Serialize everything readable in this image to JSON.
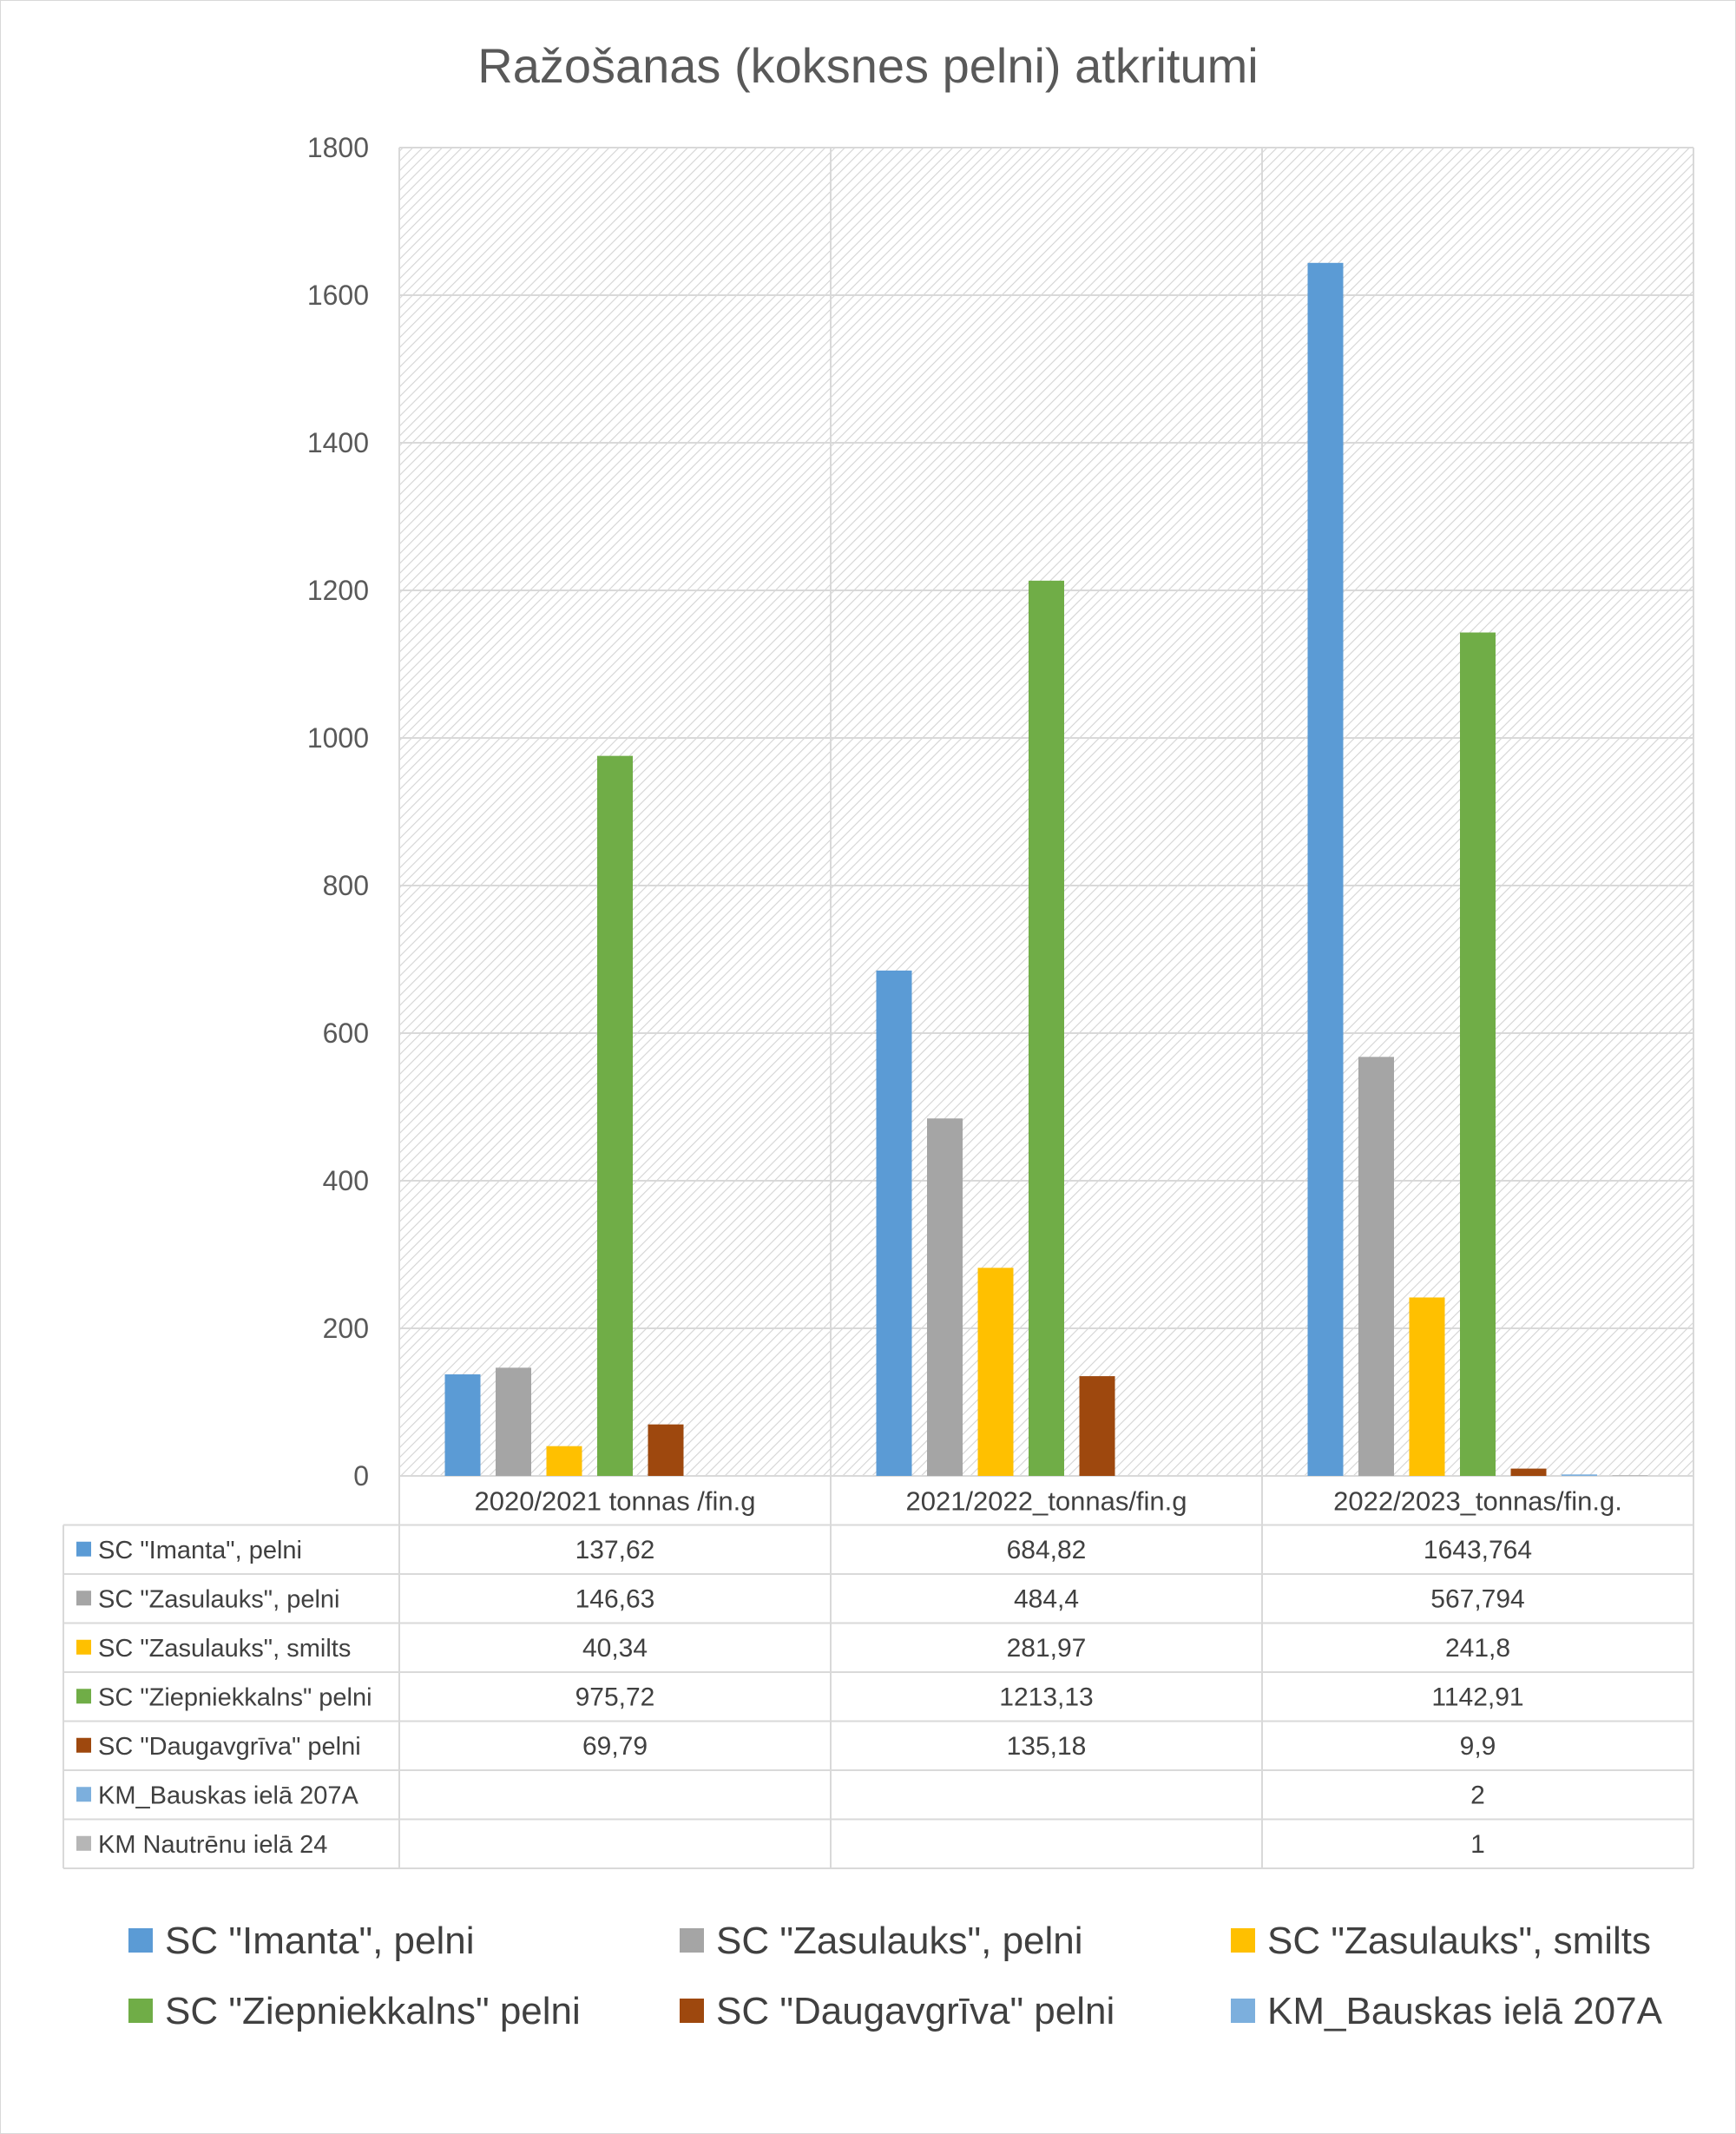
{
  "chart_data": {
    "type": "bar",
    "title": "Ražošanas (koksnes pelni) atkritumi",
    "categories": [
      "2020/2021 tonnas /fin.g",
      "2021/2022_tonnas/fin.g",
      "2022/2023_tonnas/fin.g."
    ],
    "ylim": [
      0,
      1800
    ],
    "yticks": [
      0,
      200,
      400,
      600,
      800,
      1000,
      1200,
      1400,
      1600,
      1800
    ],
    "grid": true,
    "legend_position": "bottom",
    "series": [
      {
        "name": "SC \"Imanta\", pelni",
        "color": "#5b9bd5",
        "values": [
          137.62,
          684.82,
          1643.764
        ],
        "labels": [
          "137,62",
          "684,82",
          "1643,764"
        ]
      },
      {
        "name": "SC \"Zasulauks\", pelni",
        "color": "#a5a5a5",
        "values": [
          146.63,
          484.4,
          567.794
        ],
        "labels": [
          "146,63",
          "484,4",
          "567,794"
        ]
      },
      {
        "name": "SC \"Zasulauks\", smilts",
        "color": "#ffc000",
        "values": [
          40.34,
          281.97,
          241.8
        ],
        "labels": [
          "40,34",
          "281,97",
          "241,8"
        ]
      },
      {
        "name": "SC \"Ziepniekkalns\" pelni",
        "color": "#70ad47",
        "values": [
          975.72,
          1213.13,
          1142.91
        ],
        "labels": [
          "975,72",
          "1213,13",
          "1142,91"
        ]
      },
      {
        "name": "SC \"Daugavgrīva\" pelni",
        "color": "#9e480e",
        "values": [
          69.79,
          135.18,
          9.9
        ],
        "labels": [
          "69,79",
          "135,18",
          "9,9"
        ]
      },
      {
        "name": "KM_Bauskas ielā 207A",
        "color": "#7cafdd",
        "values": [
          null,
          null,
          2
        ],
        "labels": [
          "",
          "",
          "2"
        ]
      },
      {
        "name": "KM Nautrēnu ielā 24",
        "color": "#b6b6b6",
        "values": [
          null,
          null,
          1
        ],
        "labels": [
          "",
          "",
          "1"
        ]
      }
    ],
    "legend_entries": [
      "SC \"Imanta\", pelni",
      "SC \"Zasulauks\", pelni",
      "SC \"Zasulauks\", smilts",
      "SC \"Ziepniekkalns\" pelni",
      "SC \"Daugavgrīva\" pelni",
      "KM_Bauskas ielā 207A"
    ]
  }
}
